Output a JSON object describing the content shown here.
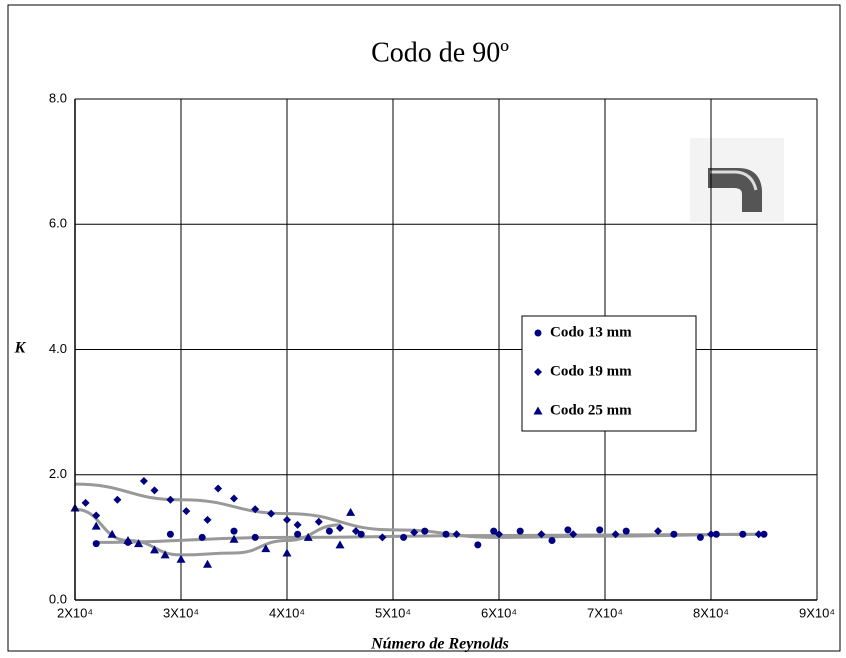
{
  "chart_data": {
    "type": "scatter",
    "title": "Codo  de  90º",
    "xlabel": "Número de Reynolds",
    "ylabel": "K",
    "xlim": [
      20000,
      90000
    ],
    "ylim": [
      0,
      8
    ],
    "xticks": [
      {
        "value": 20000,
        "label": "2X10⁴"
      },
      {
        "value": 30000,
        "label": "3X10⁴"
      },
      {
        "value": 40000,
        "label": "4X10⁴"
      },
      {
        "value": 50000,
        "label": "5X10⁴"
      },
      {
        "value": 60000,
        "label": "6X10⁴"
      },
      {
        "value": 70000,
        "label": "7X10⁴"
      },
      {
        "value": 80000,
        "label": "8X10⁴"
      },
      {
        "value": 90000,
        "label": "9X10⁴"
      }
    ],
    "yticks": [
      {
        "value": 0,
        "label": "0.0"
      },
      {
        "value": 2,
        "label": "2.0"
      },
      {
        "value": 4,
        "label": "4.0"
      },
      {
        "value": 6,
        "label": "6.0"
      },
      {
        "value": 8,
        "label": "8.0"
      }
    ],
    "grid": true,
    "trend_color": "#999999",
    "series": [
      {
        "name": "Codo 13 mm",
        "color": "#000080",
        "marker": "circle",
        "x": [
          22000,
          25000,
          29000,
          32000,
          35000,
          37000,
          41000,
          44000,
          47000,
          51000,
          53000,
          55000,
          58000,
          59500,
          62000,
          65000,
          66500,
          69500,
          72000,
          76500,
          79000,
          80500,
          83000,
          85000
        ],
        "values": [
          0.9,
          0.92,
          1.05,
          1.0,
          1.1,
          1.0,
          1.05,
          1.1,
          1.05,
          1.0,
          1.1,
          1.05,
          0.88,
          1.1,
          1.1,
          0.95,
          1.12,
          1.12,
          1.1,
          1.05,
          1.0,
          1.05,
          1.05,
          1.05
        ],
        "trend": {
          "x": [
            22000,
            40000,
            60000,
            85000
          ],
          "values": [
            0.92,
            1.0,
            1.03,
            1.05
          ]
        }
      },
      {
        "name": "Codo 19 mm",
        "color": "#000080",
        "marker": "diamond",
        "x": [
          21000,
          22000,
          24000,
          26500,
          27500,
          29000,
          30500,
          32500,
          33500,
          35000,
          37000,
          38500,
          40000,
          41000,
          43000,
          45000,
          46500,
          49000,
          52000,
          56000,
          60000,
          64000,
          67000,
          71000,
          75000,
          80000,
          84500
        ],
        "values": [
          1.55,
          1.35,
          1.6,
          1.9,
          1.75,
          1.6,
          1.42,
          1.28,
          1.78,
          1.62,
          1.45,
          1.38,
          1.28,
          1.2,
          1.25,
          1.15,
          1.1,
          1.0,
          1.08,
          1.05,
          1.05,
          1.05,
          1.05,
          1.05,
          1.1,
          1.05,
          1.05
        ],
        "trend": {
          "x": [
            20000,
            30000,
            40000,
            50000,
            60000,
            70000,
            85000
          ],
          "values": [
            1.85,
            1.6,
            1.38,
            1.12,
            1.0,
            1.02,
            1.05
          ]
        }
      },
      {
        "name": "Codo 25 mm",
        "color": "#000080",
        "marker": "triangle",
        "x": [
          20000,
          22000,
          23500,
          25000,
          26000,
          27500,
          28500,
          30000,
          32500,
          35000,
          38000,
          40000,
          42000,
          45000,
          46000
        ],
        "values": [
          1.47,
          1.18,
          1.05,
          0.95,
          0.9,
          0.8,
          0.72,
          0.65,
          0.57,
          0.97,
          0.82,
          0.75,
          1.0,
          0.88,
          1.4
        ],
        "trend": {
          "x": [
            20000,
            25000,
            30000,
            35000,
            40000,
            45000
          ],
          "values": [
            1.45,
            0.95,
            0.72,
            0.75,
            0.95,
            1.2
          ]
        }
      }
    ]
  }
}
